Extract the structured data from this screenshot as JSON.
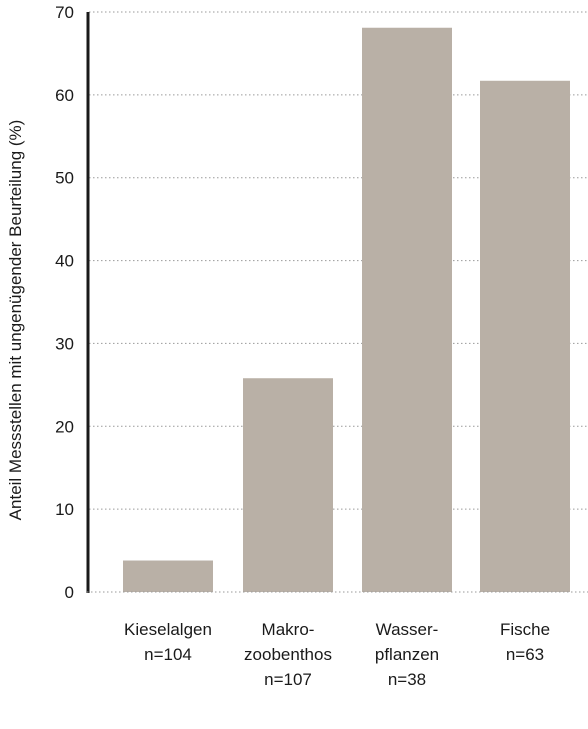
{
  "chart_data": {
    "type": "bar",
    "categories": [
      [
        "Kieselalgen",
        "n=104"
      ],
      [
        "Makro-",
        "zoobenthos",
        "n=107"
      ],
      [
        "Wasser-",
        "pflanzen",
        "n=38"
      ],
      [
        "Fische",
        "n=63"
      ]
    ],
    "values": [
      3.8,
      25.8,
      68.1,
      61.7
    ],
    "ylabel": "Anteil Messstellen mit ungenügender Beurteilung (%)",
    "ylim": [
      0,
      70
    ],
    "yticks": [
      0,
      10,
      20,
      30,
      40,
      50,
      60,
      70
    ],
    "grid": true,
    "bar_color": "#b9b0a6",
    "axis_color": "#1a1a1a"
  }
}
